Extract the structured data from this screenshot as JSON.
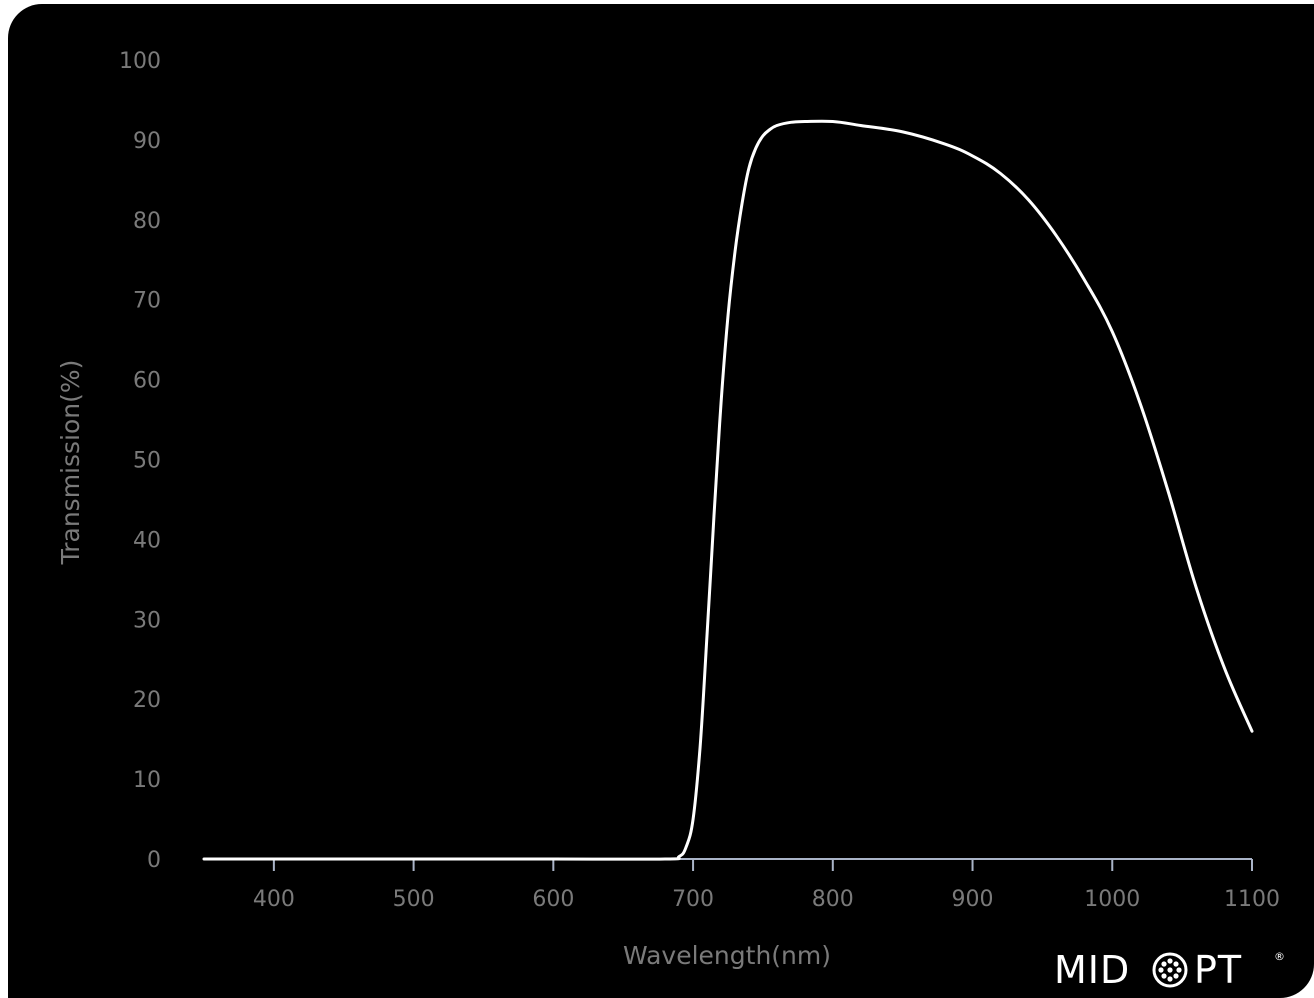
{
  "chart_data": {
    "type": "line",
    "title": "",
    "xlabel": "Wavelength(nm)",
    "ylabel": "Transmission(%)",
    "xlim": [
      350,
      1100
    ],
    "ylim": [
      0,
      100
    ],
    "x_ticks": [
      400,
      500,
      600,
      700,
      800,
      900,
      1000,
      1100
    ],
    "y_ticks": [
      0,
      10,
      20,
      30,
      40,
      50,
      60,
      70,
      80,
      90,
      100
    ],
    "grid": false,
    "legend": "none",
    "series": [
      {
        "color": "#ffffff",
        "x": [
          350,
          400,
          500,
          600,
          680,
          690,
          695,
          700,
          705,
          710,
          715,
          720,
          725,
          730,
          735,
          740,
          745,
          750,
          755,
          760,
          770,
          780,
          800,
          820,
          850,
          880,
          900,
          920,
          940,
          960,
          980,
          1000,
          1020,
          1040,
          1060,
          1080,
          1100
        ],
        "y": [
          0,
          0,
          0,
          0,
          0,
          0.3,
          1.5,
          5,
          14,
          28,
          43,
          57,
          68,
          76,
          82,
          86.5,
          89,
          90.5,
          91.3,
          91.8,
          92.2,
          92.3,
          92.3,
          91.8,
          91,
          89.5,
          88,
          85.8,
          82.5,
          78,
          72.5,
          66,
          57,
          46,
          34,
          24,
          16
        ]
      }
    ]
  },
  "brand": {
    "logo_text_left": "MID",
    "logo_text_right": "PT",
    "logo_mark": "®"
  },
  "colors": {
    "background": "#000000",
    "axis": "#aab4c8",
    "text": "#7a7a7a",
    "line": "#ffffff"
  }
}
